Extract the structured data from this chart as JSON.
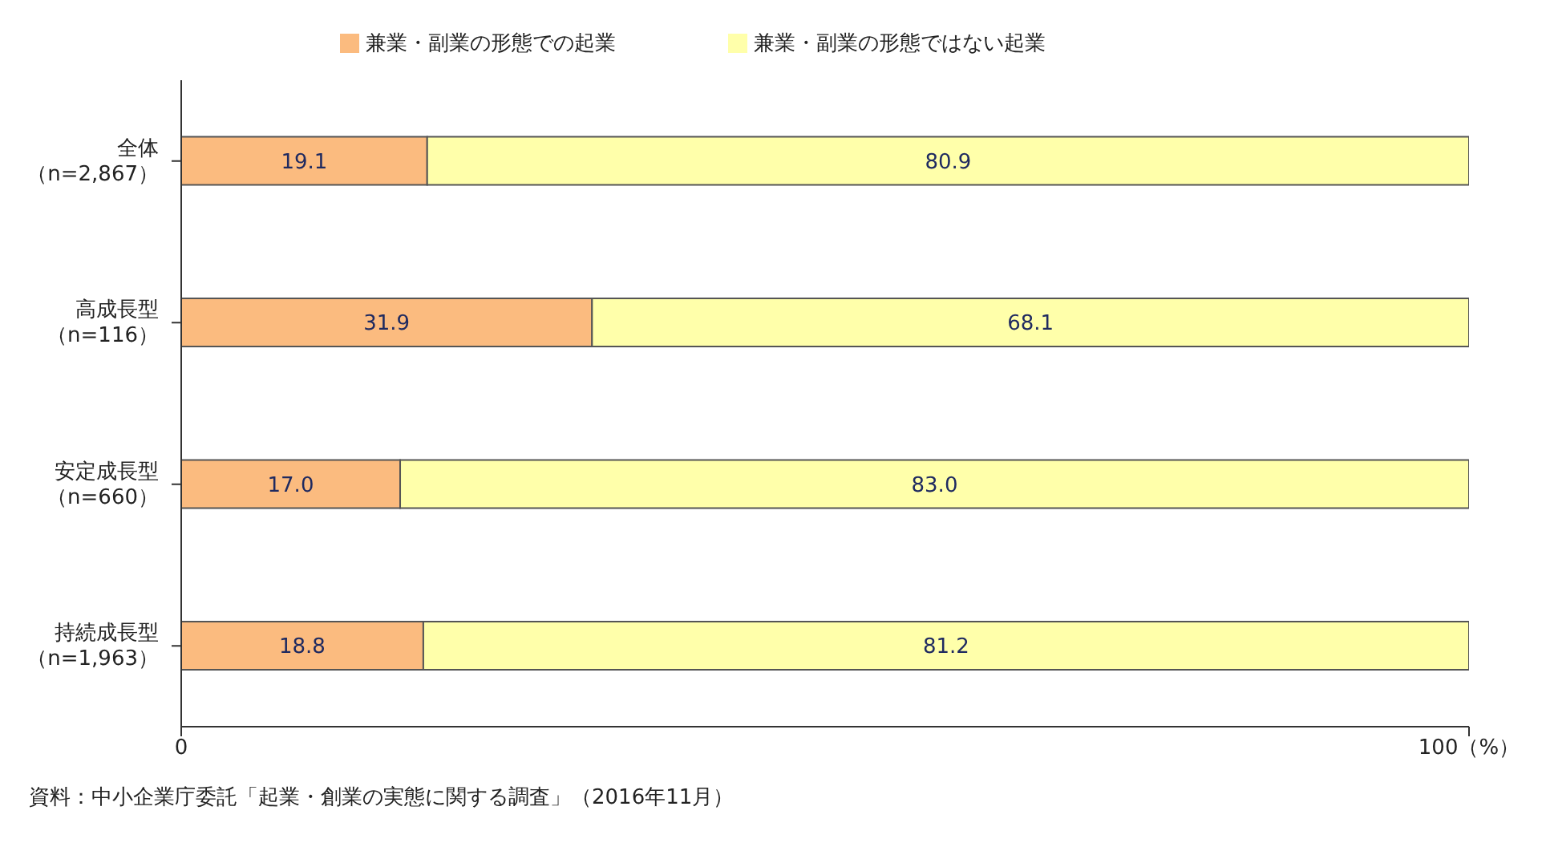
{
  "chart_data": {
    "type": "bar",
    "orientation": "horizontal",
    "stacked": true,
    "categories": [
      "全体（n=2,867）",
      "高成長型（n=116）",
      "安定成長型（n=660）",
      "持続成長型（n=1,963）"
    ],
    "series": [
      {
        "name": "兼業・副業の形態での起業",
        "color": "#fbbb7f",
        "values": [
          19.1,
          31.9,
          17.0,
          18.8
        ],
        "value_labels": [
          "19.1",
          "31.9",
          "17.0",
          "18.8"
        ]
      },
      {
        "name": "兼業・副業の形態ではない起業",
        "color": "#ffffaa",
        "values": [
          80.9,
          68.1,
          83.0,
          81.2
        ],
        "value_labels": [
          "80.9",
          "68.1",
          "83.0",
          "81.2"
        ]
      }
    ],
    "xlim": [
      0,
      100
    ],
    "xticks": [
      0,
      {
        "value": 100,
        "label": "100（%）"
      }
    ],
    "grid": false,
    "legend": "top",
    "annotations": [
      "資料：中小企業庁委託「起業・創業の実態に関する調査」（2016年11月）"
    ]
  }
}
